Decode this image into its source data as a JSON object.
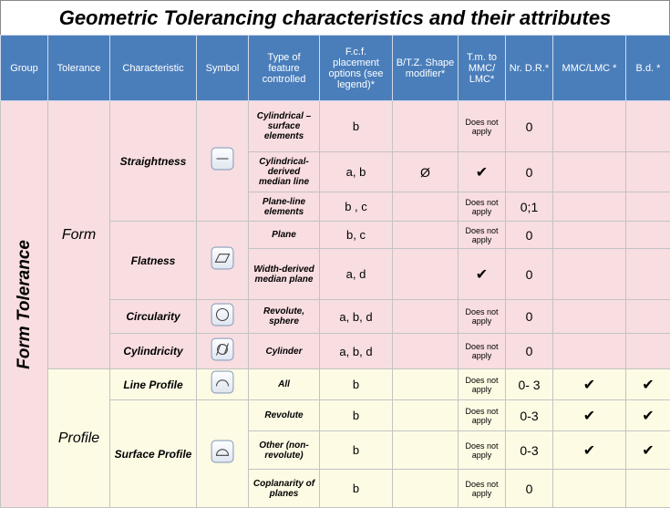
{
  "title": "Geometric Tolerancing characteristics and their attributes",
  "columns": [
    "Group",
    "Tolerance",
    "Characteristic",
    "Symbol",
    "Type of feature controlled",
    "F.c.f. placement options (see legend)*",
    "B/T.Z. Shape modifier*",
    "T.m. to MMC/ LMC*",
    "Nr. D.R.*",
    "MMC/LMC *",
    "B.d. *"
  ],
  "group": "Form Tolerance",
  "tolerances": [
    {
      "name": "Form",
      "characteristics": [
        {
          "name": "Straightness",
          "rows": [
            {
              "type": "Cylindrical – surface elements",
              "fcf": "b",
              "tm": "Does not apply",
              "dr": "0"
            },
            {
              "type": "Cylindrical-derived median line",
              "fcf": "a, b",
              "shape": "Ø",
              "tm": "✔",
              "dr": "0"
            },
            {
              "type": "Plane-line elements",
              "fcf": "b , c",
              "tm": "Does not apply",
              "dr": "0;1"
            }
          ]
        },
        {
          "name": "Flatness",
          "rows": [
            {
              "type": "Plane",
              "fcf": "b, c",
              "tm": "Does not apply",
              "dr": "0"
            },
            {
              "type": "Width-derived median plane",
              "fcf": "a, d",
              "tm": "✔",
              "dr": "0"
            }
          ]
        },
        {
          "name": "Circularity",
          "rows": [
            {
              "type": "Revolute, sphere",
              "fcf": "a, b, d",
              "tm": "Does not apply",
              "dr": "0"
            }
          ]
        },
        {
          "name": "Cylindricity",
          "rows": [
            {
              "type": "Cylinder",
              "fcf": "a, b, d",
              "tm": "Does not apply",
              "dr": "0"
            }
          ]
        }
      ]
    },
    {
      "name": "Profile",
      "characteristics": [
        {
          "name": "Line Profile",
          "rows": [
            {
              "type": "All",
              "fcf": "b",
              "tm": "Does not apply",
              "dr": "0- 3",
              "mmc": "✔",
              "bd": "✔"
            }
          ]
        },
        {
          "name": "Surface Profile",
          "rows": [
            {
              "type": "Revolute",
              "fcf": "b",
              "tm": "Does not apply",
              "dr": "0-3",
              "mmc": "✔",
              "bd": "✔"
            },
            {
              "type": "Other (non-revolute)",
              "fcf": "b",
              "tm": "Does not apply",
              "dr": "0-3",
              "mmc": "✔",
              "bd": "✔"
            },
            {
              "type": "Coplanarity of planes",
              "fcf": "b",
              "tm": "Does not apply",
              "dr": "0"
            }
          ]
        }
      ]
    }
  ]
}
